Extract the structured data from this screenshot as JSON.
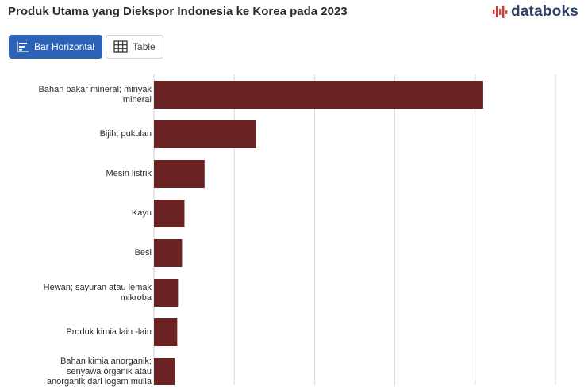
{
  "header": {
    "title": "Produk Utama yang Diekspor Indonesia ke Korea pada 2023",
    "brand": "databoks",
    "brand_icon": "databoks-logo-icon",
    "brand_color": "#2f3f66",
    "accent_color": "#d9352b"
  },
  "toolbar": {
    "tabs": [
      {
        "label": "Bar Horizontal",
        "icon": "bar-chart-icon",
        "active": true
      },
      {
        "label": "Table",
        "icon": "table-grid-icon",
        "active": false
      }
    ]
  },
  "chart_data": {
    "type": "bar",
    "orientation": "horizontal",
    "title": "Produk Utama yang Diekspor Indonesia ke Korea pada 2023",
    "categories": [
      [
        "Bahan bakar mineral; minyak",
        "mineral"
      ],
      [
        "Bijih; pukulan"
      ],
      [
        "Mesin listrik"
      ],
      [
        "Kayu"
      ],
      [
        "Besi"
      ],
      [
        "Hewan; sayuran atau lemak",
        "mikroba"
      ],
      [
        "Produk kimia lain -lain"
      ],
      [
        "Bahan kimia anorganik;",
        "senyawa organik atau",
        "anorganik dari logam mulia"
      ]
    ],
    "values": [
      4.1,
      1.27,
      0.63,
      0.38,
      0.35,
      0.3,
      0.29,
      0.26
    ],
    "xlim": [
      0,
      5
    ],
    "grid": true,
    "bar_color": "#6b2323"
  }
}
